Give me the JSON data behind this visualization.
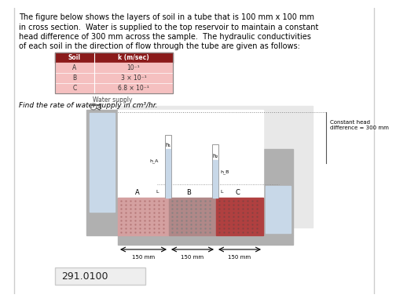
{
  "title_text": "The figure below shows the layers of soil in a tube that is 100 mm x 100 mm\nin cross section.  Water is supplied to the top reservoir to maintain a constant\nhead difference of 300 mm across the sample.  The hydraulic conductivities\nof each soil in the direction of flow through the tube are given as follows:",
  "table_header": [
    "Soil",
    "k (m/sec)"
  ],
  "table_rows": [
    [
      "A",
      "10⁻¹"
    ],
    [
      "B",
      "3 × 10⁻¹"
    ],
    [
      "C",
      "6.8 × 10⁻¹"
    ]
  ],
  "question_text": "Find the rate of water supply in cm³/hr.",
  "answer_text": "291.0100",
  "table_header_color": "#8b1a1a",
  "table_row_color": "#f5c0c0",
  "answer_box_color": "#e8e8e8",
  "wall_color": "#b0b0b0",
  "water_color": "#c8d8e8",
  "soil_a_color": "#d4a0a0",
  "soil_b_color": "#b08080",
  "soil_c_color": "#c05050",
  "constant_head_text": "Constant head\ndifference = 300 mm",
  "water_supply_text": "Water supply"
}
